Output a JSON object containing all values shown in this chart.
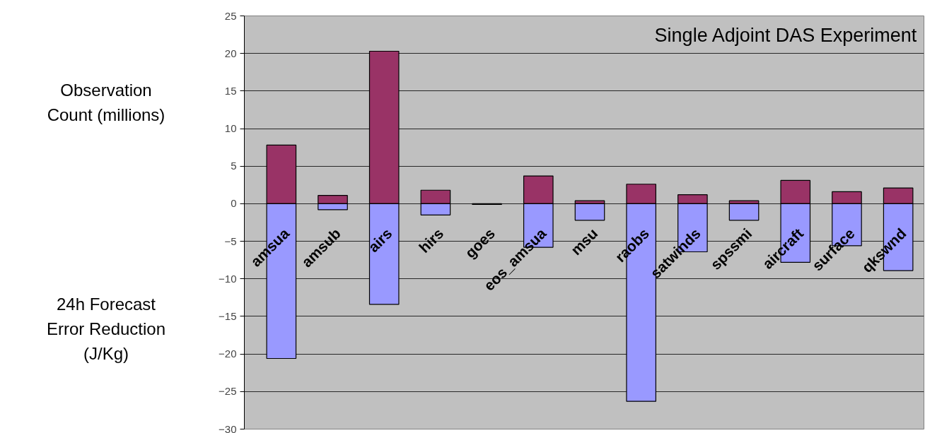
{
  "chart_data": {
    "type": "bar",
    "title": "Single Adjoint DAS Experiment",
    "categories": [
      "amsua",
      "amsub",
      "airs",
      "hirs",
      "goes",
      "eos_amsua",
      "msu",
      "raobs",
      "satwinds",
      "spssmi",
      "aircraft",
      "surface",
      "qkswnd"
    ],
    "series": [
      {
        "color": "#993366",
        "values": [
          7.8,
          1.1,
          20.3,
          1.8,
          null,
          3.7,
          0.4,
          2.6,
          1.2,
          0.4,
          3.1,
          1.6,
          2.1
        ]
      },
      {
        "color": "#9999ff",
        "values": [
          -20.6,
          -0.8,
          -13.4,
          -1.5,
          -0.1,
          -5.8,
          -2.2,
          -26.3,
          -6.4,
          -2.2,
          -7.8,
          -5.6,
          -8.9
        ]
      }
    ],
    "ylim": [
      -30,
      25
    ],
    "yticks": [
      -30,
      -25,
      -20,
      -15,
      -10,
      -5,
      0,
      5,
      10,
      15,
      20,
      25
    ],
    "stacked": true,
    "grid": "y",
    "annotations": [
      "Observation\nCount (millions)",
      "24h Forecast\nError Reduction\n(J/Kg)"
    ]
  }
}
